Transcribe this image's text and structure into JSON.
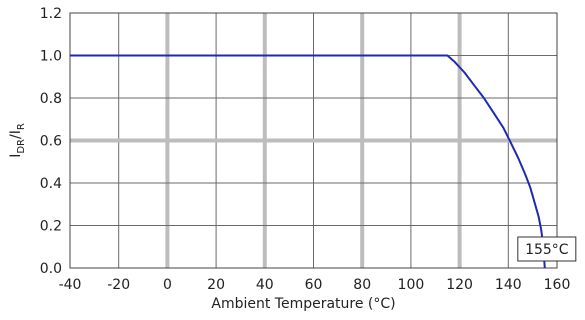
{
  "chart_data": {
    "type": "line",
    "title": "",
    "xlabel": "Ambient Temperature (°C)",
    "ylabel_main": "I",
    "ylabel_sub1": "DR",
    "ylabel_sep": "/I",
    "ylabel_sub2": "R",
    "xlim": [
      -40,
      160
    ],
    "ylim": [
      0,
      1.2
    ],
    "x_ticks": [
      -40,
      -20,
      0,
      20,
      40,
      60,
      80,
      100,
      120,
      140,
      160
    ],
    "x_tick_labels": [
      "-40",
      "-20",
      "0",
      "20",
      "40",
      "60",
      "80",
      "100",
      "120",
      "140",
      "160"
    ],
    "y_ticks": [
      0,
      0.2,
      0.4,
      0.6,
      0.8,
      1.0,
      1.2
    ],
    "y_tick_labels": [
      "0.0",
      "0.2",
      "0.4",
      "0.6",
      "0.8",
      "1.0",
      "1.2"
    ],
    "grid": true,
    "legend": "none",
    "colors": {
      "line": "#1f2ab0",
      "grid_major": "#bdbdbd",
      "grid_minor": "#6a6a6a",
      "axis": "#444444"
    },
    "series": [
      {
        "x": [
          -40,
          115,
          118,
          122,
          126,
          130,
          134,
          138,
          141,
          144,
          147,
          149,
          151,
          152.5,
          153.5,
          154.3,
          155
        ],
        "y": [
          1.0,
          1.0,
          0.97,
          0.92,
          0.86,
          0.8,
          0.73,
          0.66,
          0.59,
          0.52,
          0.44,
          0.38,
          0.3,
          0.24,
          0.18,
          0.11,
          0.0
        ]
      }
    ],
    "annotations": [
      {
        "text": "155°C",
        "x": 155,
        "y": 0.08
      }
    ]
  }
}
